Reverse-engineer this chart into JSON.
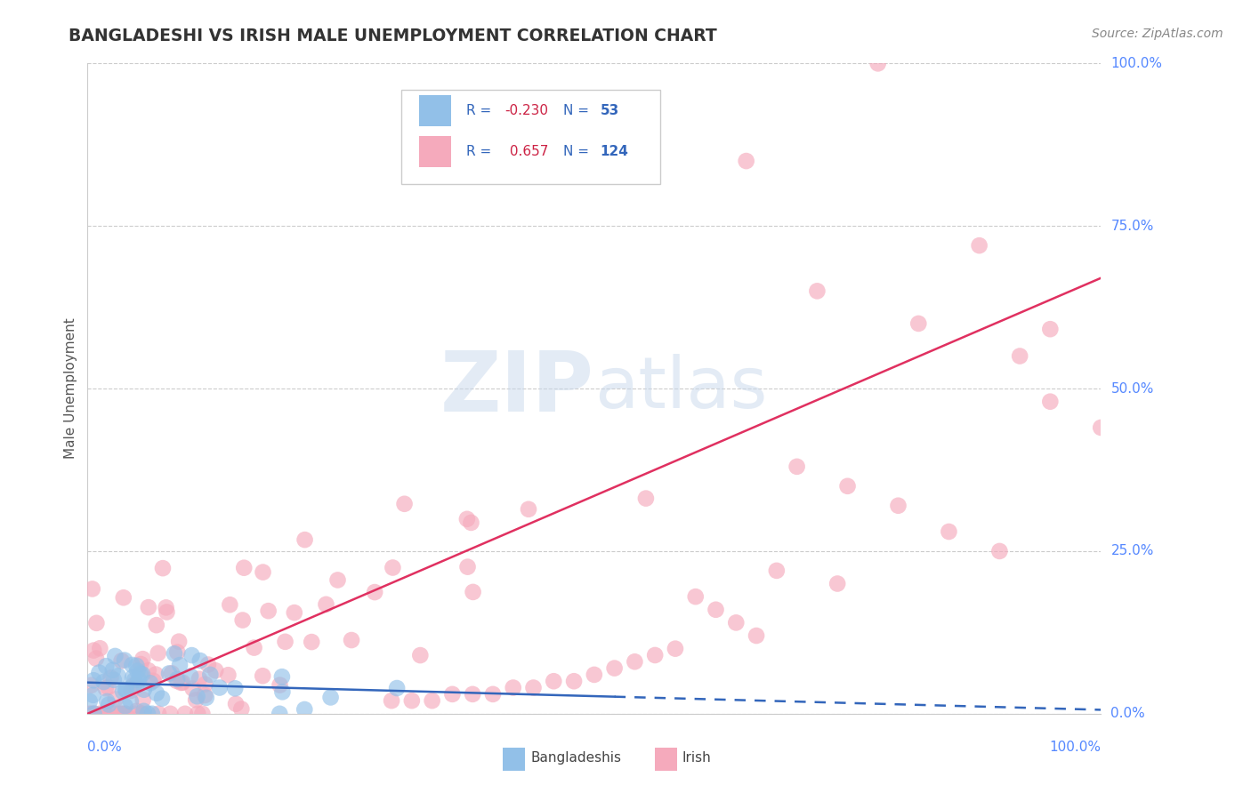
{
  "title": "BANGLADESHI VS IRISH MALE UNEMPLOYMENT CORRELATION CHART",
  "source": "Source: ZipAtlas.com",
  "ylabel": "Male Unemployment",
  "legend_r_blue": "-0.230",
  "legend_n_blue": "53",
  "legend_r_pink": "0.657",
  "legend_n_pink": "124",
  "blue_scatter_color": "#92C0E8",
  "pink_scatter_color": "#F5AABC",
  "blue_line_color": "#3366BB",
  "pink_line_color": "#E03060",
  "background_color": "#FFFFFF",
  "grid_color": "#CCCCCC",
  "label_color": "#5588FF",
  "title_color": "#333333",
  "source_color": "#888888",
  "watermark_color": "#C8D8EC",
  "ylabel_color": "#555555",
  "blue_line_solid_end": 0.52,
  "blue_intercept": 0.048,
  "blue_slope": -0.042,
  "pink_intercept": 0.0,
  "pink_slope": 0.67,
  "pink_line_end": 1.0,
  "xlim": [
    0.0,
    1.0
  ],
  "ylim": [
    0.0,
    1.0
  ],
  "ytick_positions": [
    0.0,
    0.25,
    0.5,
    0.75,
    1.0
  ],
  "ytick_labels": [
    "0.0%",
    "25.0%",
    "50.0%",
    "75.0%",
    "100.0%"
  ]
}
